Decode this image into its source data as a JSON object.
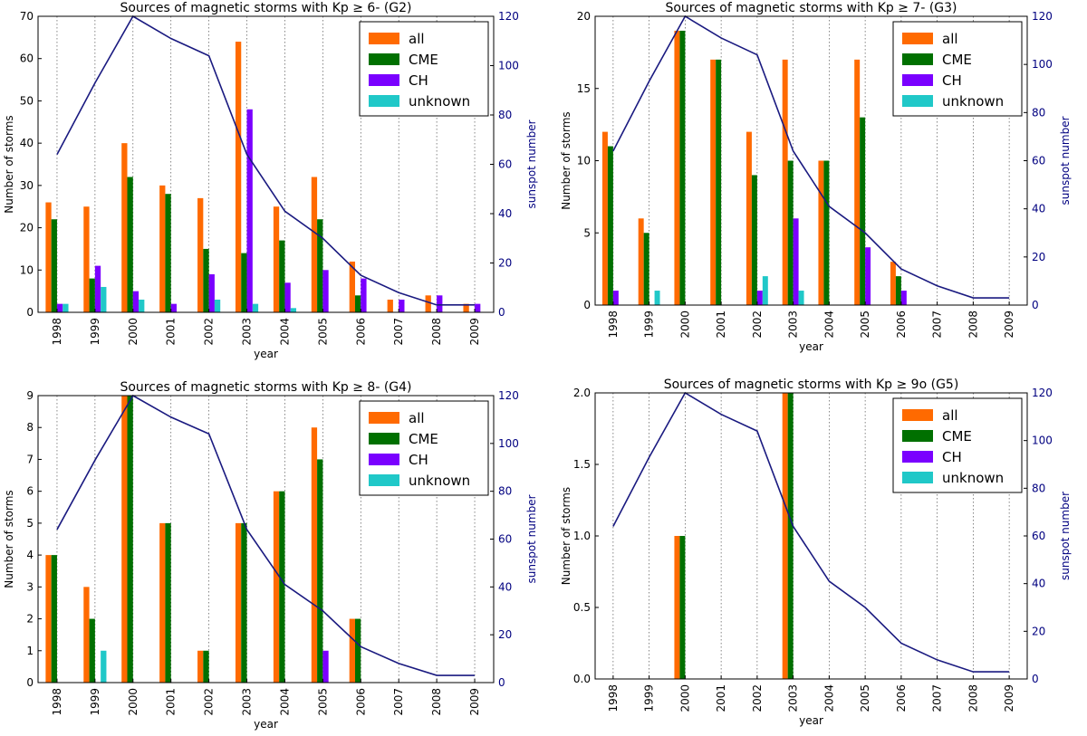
{
  "colors": {
    "all": "#ff6a00",
    "CME": "#007000",
    "CH": "#7a00ff",
    "unknown": "#20c8c8",
    "sunspot": "#1a1a80",
    "right_axis": "#000080"
  },
  "chart_data": [
    {
      "type": "bar",
      "title": "Sources of magnetic storms with Kp ≥ 6- (G2)",
      "xlabel": "year",
      "ylabel": "Number of storms",
      "ylabel_right": "sunspot number",
      "categories": [
        "1998",
        "1999",
        "2000",
        "2001",
        "2002",
        "2003",
        "2004",
        "2005",
        "2006",
        "2007",
        "2008",
        "2009"
      ],
      "ylim": [
        0,
        70
      ],
      "yticks": [
        "0",
        "10",
        "20",
        "30",
        "40",
        "50",
        "60",
        "70"
      ],
      "y2lim": [
        0,
        120
      ],
      "y2ticks": [
        "0",
        "20",
        "40",
        "60",
        "80",
        "100",
        "120"
      ],
      "legend_position": "top-right",
      "series": [
        {
          "name": "all",
          "values": [
            26,
            25,
            40,
            30,
            27,
            64,
            25,
            32,
            12,
            3,
            4,
            2
          ]
        },
        {
          "name": "CME",
          "values": [
            22,
            8,
            32,
            28,
            15,
            14,
            17,
            22,
            4,
            0,
            0,
            0
          ]
        },
        {
          "name": "CH",
          "values": [
            2,
            11,
            5,
            2,
            9,
            48,
            7,
            10,
            8,
            3,
            4,
            2
          ]
        },
        {
          "name": "unknown",
          "values": [
            2,
            6,
            3,
            0,
            3,
            2,
            1,
            0,
            0,
            0,
            0,
            0
          ]
        }
      ],
      "sunspot": [
        64,
        93,
        120,
        111,
        104,
        64,
        41,
        30,
        15,
        8,
        3,
        3
      ]
    },
    {
      "type": "bar",
      "title": "Sources of magnetic storms with Kp ≥ 7- (G3)",
      "xlabel": "year",
      "ylabel": "Number of storms",
      "ylabel_right": "sunspot number",
      "categories": [
        "1998",
        "1999",
        "2000",
        "2001",
        "2002",
        "2003",
        "2004",
        "2005",
        "2006",
        "2007",
        "2008",
        "2009"
      ],
      "ylim": [
        0,
        20
      ],
      "yticks": [
        "0",
        "5",
        "10",
        "15",
        "20"
      ],
      "y2lim": [
        0,
        120
      ],
      "y2ticks": [
        "0",
        "20",
        "40",
        "60",
        "80",
        "100",
        "120"
      ],
      "legend_position": "top-right",
      "series": [
        {
          "name": "all",
          "values": [
            12,
            6,
            19,
            17,
            12,
            17,
            10,
            17,
            3,
            0,
            0,
            0
          ]
        },
        {
          "name": "CME",
          "values": [
            11,
            5,
            19,
            17,
            9,
            10,
            10,
            13,
            2,
            0,
            0,
            0
          ]
        },
        {
          "name": "CH",
          "values": [
            1,
            0,
            0,
            0,
            1,
            6,
            0,
            4,
            1,
            0,
            0,
            0
          ]
        },
        {
          "name": "unknown",
          "values": [
            0,
            1,
            0,
            0,
            2,
            1,
            0,
            0,
            0,
            0,
            0,
            0
          ]
        }
      ],
      "sunspot": [
        64,
        93,
        120,
        111,
        104,
        64,
        41,
        30,
        15,
        8,
        3,
        3
      ]
    },
    {
      "type": "bar",
      "title": "Sources of magnetic storms with Kp ≥ 8- (G4)",
      "xlabel": "year",
      "ylabel": "Number of storms",
      "ylabel_right": "sunspot number",
      "categories": [
        "1998",
        "1999",
        "2000",
        "2001",
        "2002",
        "2003",
        "2004",
        "2005",
        "2006",
        "2007",
        "2008",
        "2009"
      ],
      "ylim": [
        0,
        9
      ],
      "yticks": [
        "0",
        "1",
        "2",
        "3",
        "4",
        "5",
        "6",
        "7",
        "8",
        "9"
      ],
      "y2lim": [
        0,
        120
      ],
      "y2ticks": [
        "0",
        "20",
        "40",
        "60",
        "80",
        "100",
        "120"
      ],
      "legend_position": "top-right",
      "series": [
        {
          "name": "all",
          "values": [
            4,
            3,
            9,
            5,
            1,
            5,
            6,
            8,
            2,
            0,
            0,
            0
          ]
        },
        {
          "name": "CME",
          "values": [
            4,
            2,
            9,
            5,
            1,
            5,
            6,
            7,
            2,
            0,
            0,
            0
          ]
        },
        {
          "name": "CH",
          "values": [
            0,
            0,
            0,
            0,
            0,
            0,
            0,
            1,
            0,
            0,
            0,
            0
          ]
        },
        {
          "name": "unknown",
          "values": [
            0,
            1,
            0,
            0,
            0,
            0,
            0,
            0,
            0,
            0,
            0,
            0
          ]
        }
      ],
      "sunspot": [
        64,
        93,
        120,
        111,
        104,
        64,
        41,
        30,
        15,
        8,
        3,
        3
      ]
    },
    {
      "type": "bar",
      "title": "Sources of magnetic storms with Kp ≥ 9o (G5)",
      "xlabel": "year",
      "ylabel": "Number of storms",
      "ylabel_right": "sunspot number",
      "categories": [
        "1998",
        "1999",
        "2000",
        "2001",
        "2002",
        "2003",
        "2004",
        "2005",
        "2006",
        "2007",
        "2008",
        "2009"
      ],
      "ylim": [
        0,
        2.0
      ],
      "yticks": [
        "0.0",
        "0.5",
        "1.0",
        "1.5",
        "2.0"
      ],
      "y2lim": [
        0,
        120
      ],
      "y2ticks": [
        "0",
        "20",
        "40",
        "60",
        "80",
        "100",
        "120"
      ],
      "legend_position": "top-right",
      "series": [
        {
          "name": "all",
          "values": [
            0,
            0,
            1,
            0,
            0,
            2,
            0,
            0,
            0,
            0,
            0,
            0
          ]
        },
        {
          "name": "CME",
          "values": [
            0,
            0,
            1,
            0,
            0,
            2,
            0,
            0,
            0,
            0,
            0,
            0
          ]
        },
        {
          "name": "CH",
          "values": [
            0,
            0,
            0,
            0,
            0,
            0,
            0,
            0,
            0,
            0,
            0,
            0
          ]
        },
        {
          "name": "unknown",
          "values": [
            0,
            0,
            0,
            0,
            0,
            0,
            0,
            0,
            0,
            0,
            0,
            0
          ]
        }
      ],
      "sunspot": [
        64,
        93,
        120,
        111,
        104,
        64,
        41,
        30,
        15,
        8,
        3,
        3
      ]
    }
  ]
}
